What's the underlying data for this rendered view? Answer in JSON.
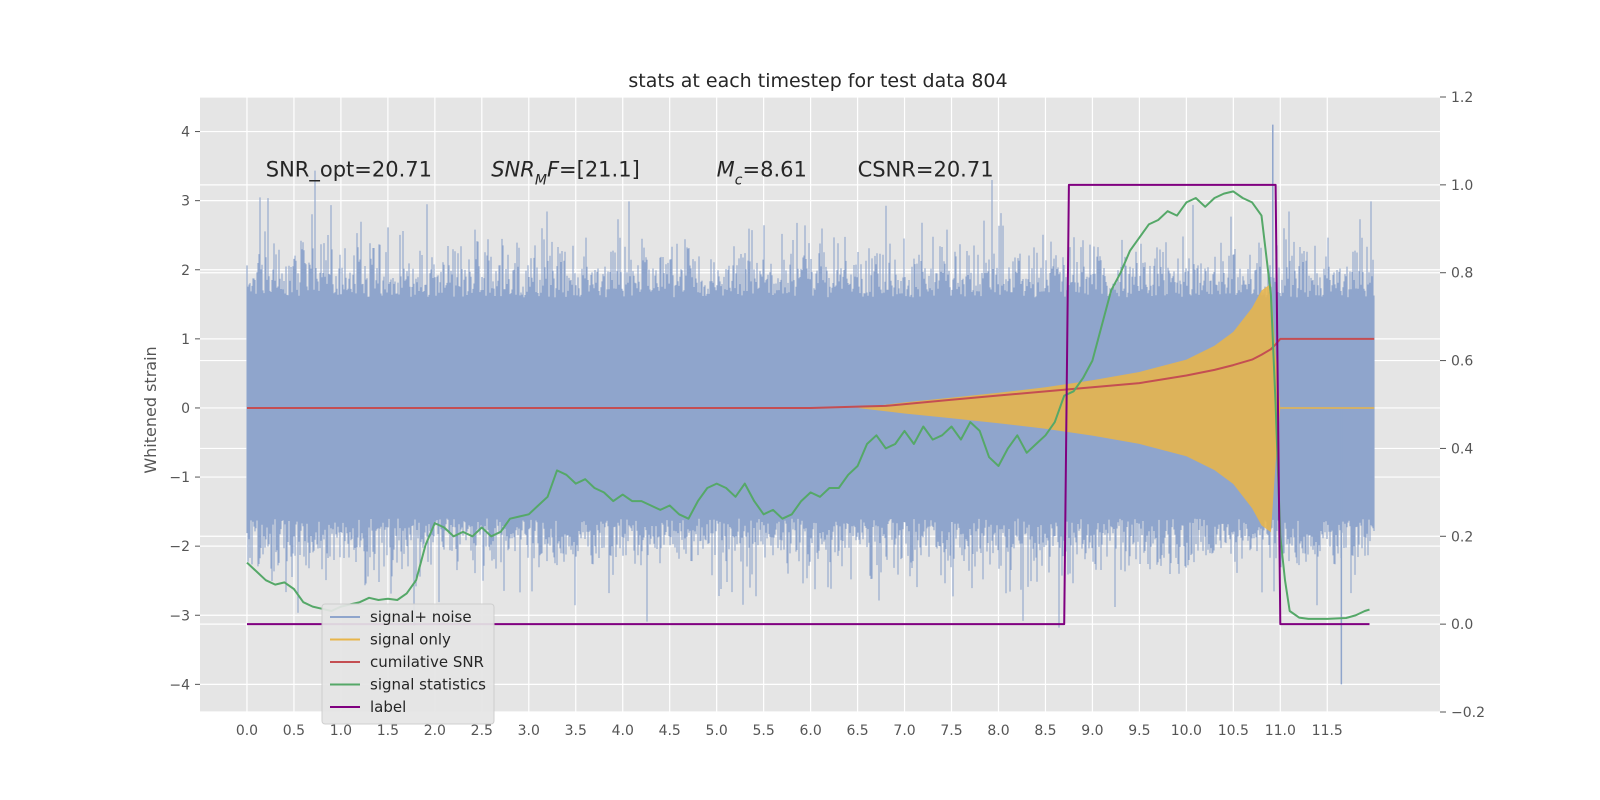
{
  "chart_data": {
    "type": "line",
    "title": "stats at each timestep for test data 804",
    "ylabel": "Whitened strain",
    "xlabel": "",
    "xlim": [
      -0.5,
      12.7
    ],
    "ylim": [
      -4.4,
      4.5
    ],
    "y2lim": [
      -0.2,
      1.2
    ],
    "x_ticks": [
      0.0,
      0.5,
      1.0,
      1.5,
      2.0,
      2.5,
      3.0,
      3.5,
      4.0,
      4.5,
      5.0,
      5.5,
      6.0,
      6.5,
      7.0,
      7.5,
      8.0,
      8.5,
      9.0,
      9.5,
      10.0,
      10.5,
      11.0,
      11.5
    ],
    "x_tick_labels": [
      "0.0",
      "0.5",
      "1.0",
      "1.5",
      "2.0",
      "2.5",
      "3.0",
      "3.5",
      "4.0",
      "4.5",
      "5.0",
      "5.5",
      "6.0",
      "6.5",
      "7.0",
      "7.5",
      "8.0",
      "8.5",
      "9.0",
      "9.5",
      "10.0",
      "10.5",
      "11.0",
      "11.5"
    ],
    "y_ticks": [
      -4,
      -3,
      -2,
      -1,
      0,
      1,
      2,
      3,
      4
    ],
    "y_tick_labels": [
      "−4",
      "−3",
      "−2",
      "−1",
      "0",
      "1",
      "2",
      "3",
      "4"
    ],
    "y2_ticks": [
      -0.2,
      0.0,
      0.2,
      0.4,
      0.6,
      0.8,
      1.0,
      1.2
    ],
    "y2_tick_labels": [
      "−0.2",
      "0.0",
      "0.2",
      "0.4",
      "0.6",
      "0.8",
      "1.0",
      "1.2"
    ],
    "grid": true,
    "legend_position": "lower-left",
    "annotations": [
      {
        "text": "SNR_opt=20.71",
        "x": 0.2,
        "y": 3.35
      },
      {
        "parts": [
          {
            "t": "SNR",
            "i": true
          },
          {
            "t": "M",
            "i": true,
            "sub": true
          },
          {
            "t": "F",
            "i": true
          },
          {
            "t": "=[21.1]",
            "i": false
          }
        ],
        "x": 2.6,
        "y": 3.35
      },
      {
        "parts": [
          {
            "t": "M",
            "i": true
          },
          {
            "t": "c",
            "i": true,
            "sub": true
          },
          {
            "t": "=8.61",
            "i": false
          }
        ],
        "x": 5.0,
        "y": 3.35
      },
      {
        "text": "CSNR=20.71",
        "x": 6.5,
        "y": 3.35
      }
    ],
    "series": [
      {
        "name": "signal+ noise",
        "color": "#8fa5cc",
        "axis": "left",
        "style": "noise",
        "x_range": [
          0.0,
          12.0
        ],
        "envelope_q": 1.6,
        "extreme_max": 4.1,
        "extreme_min": -4.0
      },
      {
        "name": "signal only",
        "color": "#e8b54a",
        "axis": "left",
        "style": "chirp",
        "x": [
          6.5,
          7.0,
          7.5,
          8.0,
          8.5,
          9.0,
          9.5,
          10.0,
          10.3,
          10.5,
          10.7,
          10.8,
          10.9,
          10.95,
          11.0
        ],
        "amplitude": [
          0.0,
          0.08,
          0.15,
          0.22,
          0.3,
          0.4,
          0.52,
          0.7,
          0.9,
          1.1,
          1.45,
          1.7,
          1.8,
          0.8,
          0.0
        ]
      },
      {
        "name": "cumilative SNR",
        "color": "#c44e52",
        "axis": "left",
        "x": [
          0.0,
          6.0,
          6.5,
          6.8,
          7.5,
          8.0,
          8.5,
          9.0,
          9.5,
          10.0,
          10.3,
          10.5,
          10.7,
          10.8,
          10.9,
          10.95,
          11.0,
          12.0
        ],
        "y": [
          0.0,
          0.0,
          0.02,
          0.03,
          0.12,
          0.18,
          0.24,
          0.3,
          0.36,
          0.47,
          0.55,
          0.62,
          0.7,
          0.77,
          0.85,
          0.92,
          1.0,
          1.0
        ]
      },
      {
        "name": "signal statistics",
        "color": "#55a868",
        "axis": "right",
        "x": [
          0.0,
          0.1,
          0.2,
          0.3,
          0.4,
          0.5,
          0.6,
          0.7,
          0.8,
          0.9,
          1.0,
          1.1,
          1.2,
          1.3,
          1.4,
          1.5,
          1.6,
          1.7,
          1.8,
          1.9,
          2.0,
          2.1,
          2.2,
          2.3,
          2.4,
          2.5,
          2.6,
          2.7,
          2.8,
          2.9,
          3.0,
          3.1,
          3.2,
          3.3,
          3.4,
          3.5,
          3.6,
          3.7,
          3.8,
          3.9,
          4.0,
          4.1,
          4.2,
          4.3,
          4.4,
          4.5,
          4.6,
          4.7,
          4.8,
          4.9,
          5.0,
          5.1,
          5.2,
          5.3,
          5.4,
          5.5,
          5.6,
          5.7,
          5.8,
          5.9,
          6.0,
          6.1,
          6.2,
          6.3,
          6.4,
          6.5,
          6.6,
          6.7,
          6.8,
          6.9,
          7.0,
          7.1,
          7.2,
          7.3,
          7.4,
          7.5,
          7.6,
          7.7,
          7.8,
          7.9,
          8.0,
          8.1,
          8.2,
          8.3,
          8.4,
          8.5,
          8.6,
          8.7,
          8.8,
          8.9,
          9.0,
          9.1,
          9.2,
          9.3,
          9.4,
          9.5,
          9.6,
          9.7,
          9.8,
          9.9,
          10.0,
          10.1,
          10.2,
          10.3,
          10.4,
          10.5,
          10.6,
          10.7,
          10.8,
          10.9,
          10.95,
          11.0,
          11.05,
          11.1,
          11.2,
          11.3,
          11.5,
          11.7,
          11.8,
          11.9,
          11.95
        ],
        "y": [
          0.14,
          0.12,
          0.1,
          0.09,
          0.095,
          0.08,
          0.05,
          0.04,
          0.035,
          0.03,
          0.04,
          0.045,
          0.05,
          0.06,
          0.055,
          0.058,
          0.055,
          0.07,
          0.1,
          0.18,
          0.23,
          0.22,
          0.2,
          0.21,
          0.2,
          0.22,
          0.2,
          0.21,
          0.24,
          0.245,
          0.25,
          0.27,
          0.29,
          0.35,
          0.34,
          0.32,
          0.33,
          0.31,
          0.3,
          0.28,
          0.295,
          0.28,
          0.28,
          0.27,
          0.26,
          0.27,
          0.25,
          0.24,
          0.28,
          0.31,
          0.32,
          0.31,
          0.29,
          0.32,
          0.28,
          0.25,
          0.26,
          0.24,
          0.25,
          0.28,
          0.3,
          0.29,
          0.31,
          0.31,
          0.34,
          0.36,
          0.41,
          0.43,
          0.4,
          0.41,
          0.44,
          0.41,
          0.45,
          0.42,
          0.43,
          0.45,
          0.42,
          0.46,
          0.44,
          0.38,
          0.36,
          0.4,
          0.43,
          0.39,
          0.41,
          0.43,
          0.46,
          0.52,
          0.53,
          0.56,
          0.6,
          0.68,
          0.76,
          0.8,
          0.85,
          0.88,
          0.91,
          0.92,
          0.94,
          0.93,
          0.96,
          0.97,
          0.95,
          0.97,
          0.98,
          0.985,
          0.97,
          0.96,
          0.93,
          0.75,
          0.5,
          0.2,
          0.1,
          0.03,
          0.015,
          0.012,
          0.012,
          0.014,
          0.02,
          0.03,
          0.033
        ]
      },
      {
        "name": "label",
        "color": "#800080",
        "axis": "right",
        "x": [
          0.0,
          8.7,
          8.75,
          10.95,
          11.0,
          11.95
        ],
        "y": [
          0.0,
          0.0,
          1.0,
          1.0,
          0.0,
          0.0
        ]
      }
    ]
  }
}
